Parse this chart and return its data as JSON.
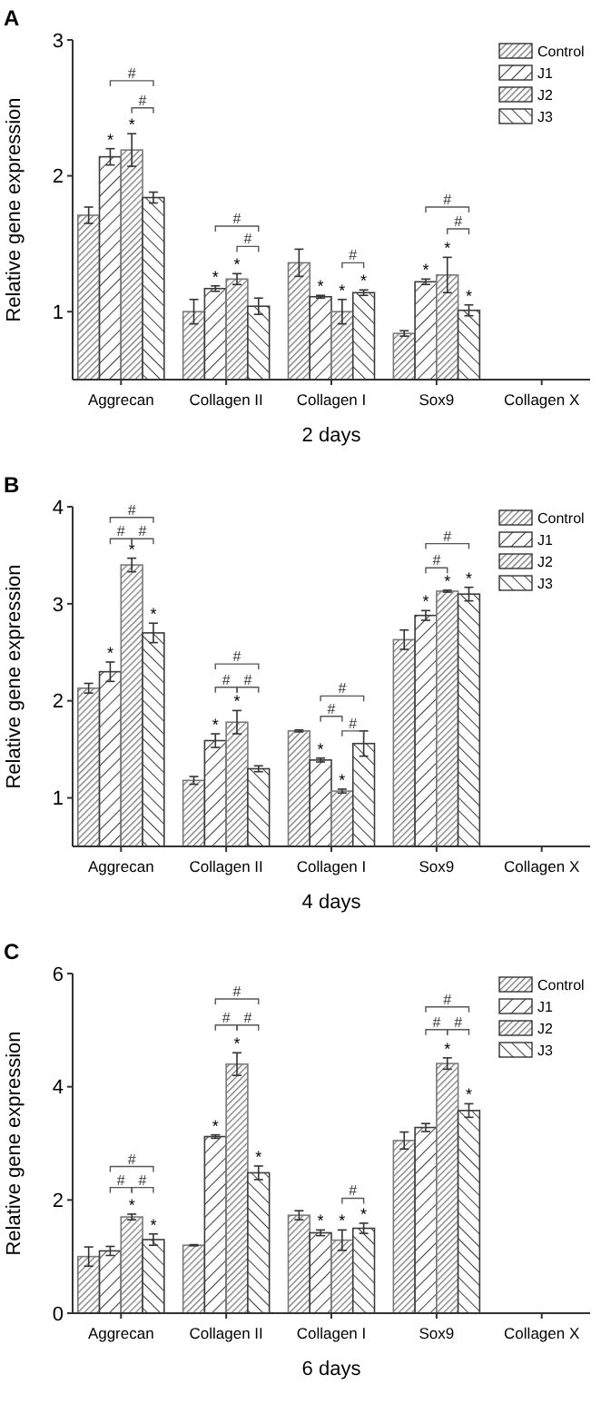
{
  "chart_data": [
    {
      "type": "bar",
      "title": "A",
      "xlabel": "2 days",
      "ylabel": "Relative gene expression",
      "categories": [
        "Aggrecan",
        "Collagen II",
        "Collagen I",
        "Sox9",
        "Collagen X"
      ],
      "ylim": [
        0.5,
        3
      ],
      "yticks": [
        1,
        2,
        3
      ],
      "legend": "top right",
      "grid": false,
      "series": [
        {
          "name": "Control",
          "color": "#7a7a7a",
          "values": [
            1.71,
            1.0,
            1.36,
            0.84,
            null
          ],
          "errors": [
            0.06,
            0.09,
            0.1,
            0.02,
            null
          ]
        },
        {
          "name": "J1",
          "color": "#3c3c3c",
          "values": [
            2.14,
            1.17,
            1.11,
            1.22,
            null
          ],
          "errors": [
            0.06,
            0.02,
            0.01,
            0.02,
            null
          ],
          "value_labels": [
            "*",
            "*",
            "*",
            "*",
            null
          ]
        },
        {
          "name": "J2",
          "color": "#7a7a7a",
          "values": [
            2.19,
            1.24,
            1.0,
            1.27,
            null
          ],
          "errors": [
            0.12,
            0.04,
            0.09,
            0.13,
            null
          ],
          "value_labels": [
            "*",
            "*",
            "*",
            "*",
            null
          ]
        },
        {
          "name": "J3",
          "color": "#3c3c3c",
          "values": [
            1.84,
            1.04,
            1.14,
            1.01,
            null
          ],
          "errors": [
            0.04,
            0.06,
            0.02,
            0.04,
            null
          ],
          "value_labels": [
            null,
            null,
            "*",
            "*",
            null
          ]
        }
      ],
      "annotations": [
        "#",
        "#",
        "#",
        "#",
        "#",
        "#",
        "#"
      ]
    },
    {
      "type": "bar",
      "title": "B",
      "xlabel": "4 days",
      "ylabel": "Relative gene expression",
      "categories": [
        "Aggrecan",
        "Collagen II",
        "Collagen I",
        "Sox9",
        "Collagen X"
      ],
      "ylim": [
        0.5,
        4
      ],
      "yticks": [
        1,
        2,
        3,
        4
      ],
      "legend": "top right",
      "grid": false,
      "series": [
        {
          "name": "Control",
          "color": "#7a7a7a",
          "values": [
            2.13,
            1.18,
            1.69,
            2.63,
            null
          ],
          "errors": [
            0.05,
            0.04,
            0.01,
            0.1,
            null
          ]
        },
        {
          "name": "J1",
          "color": "#3c3c3c",
          "values": [
            2.3,
            1.59,
            1.39,
            2.88,
            null
          ],
          "errors": [
            0.1,
            0.07,
            0.02,
            0.05,
            null
          ],
          "value_labels": [
            "*",
            "*",
            "*",
            "*",
            null
          ]
        },
        {
          "name": "J2",
          "color": "#7a7a7a",
          "values": [
            3.4,
            1.78,
            1.07,
            3.13,
            null
          ],
          "errors": [
            0.07,
            0.12,
            0.02,
            0.01,
            null
          ],
          "value_labels": [
            "*",
            "*",
            "*",
            "*",
            null
          ]
        },
        {
          "name": "J3",
          "color": "#3c3c3c",
          "values": [
            2.7,
            1.3,
            1.56,
            3.1,
            null
          ],
          "errors": [
            0.1,
            0.03,
            0.13,
            0.07,
            null
          ],
          "value_labels": [
            "*",
            null,
            null,
            "*",
            null
          ]
        }
      ],
      "annotations": [
        "#",
        "#",
        "#",
        "#",
        "#",
        "#",
        "#",
        "#",
        "#",
        "#",
        "#"
      ]
    },
    {
      "type": "bar",
      "title": "C",
      "xlabel": "6 days",
      "ylabel": "Relative gene expression",
      "categories": [
        "Aggrecan",
        "Collagen II",
        "Collagen I",
        "Sox9",
        "Collagen X"
      ],
      "ylim": [
        0,
        6
      ],
      "yticks": [
        0,
        2,
        4,
        6
      ],
      "legend": "top right",
      "grid": false,
      "series": [
        {
          "name": "Control",
          "color": "#7a7a7a",
          "values": [
            1.0,
            1.2,
            1.73,
            3.05,
            null
          ],
          "errors": [
            0.17,
            0.01,
            0.08,
            0.15,
            null
          ]
        },
        {
          "name": "J1",
          "color": "#3c3c3c",
          "values": [
            1.1,
            3.12,
            1.42,
            3.28,
            null
          ],
          "errors": [
            0.08,
            0.03,
            0.05,
            0.07,
            null
          ],
          "value_labels": [
            null,
            "*",
            "*",
            null,
            null
          ]
        },
        {
          "name": "J2",
          "color": "#7a7a7a",
          "values": [
            1.7,
            4.4,
            1.29,
            4.41,
            null
          ],
          "errors": [
            0.05,
            0.2,
            0.18,
            0.1,
            null
          ],
          "value_labels": [
            "*",
            "*",
            "*",
            "*",
            null
          ]
        },
        {
          "name": "J3",
          "color": "#3c3c3c",
          "values": [
            1.3,
            2.48,
            1.5,
            3.58,
            null
          ],
          "errors": [
            0.1,
            0.12,
            0.09,
            0.12,
            null
          ],
          "value_labels": [
            "*",
            "*",
            "*",
            "*",
            null
          ]
        }
      ],
      "annotations": [
        "#",
        "#",
        "#",
        "#",
        "#",
        "#",
        "#",
        "#",
        "#",
        "#"
      ]
    }
  ]
}
